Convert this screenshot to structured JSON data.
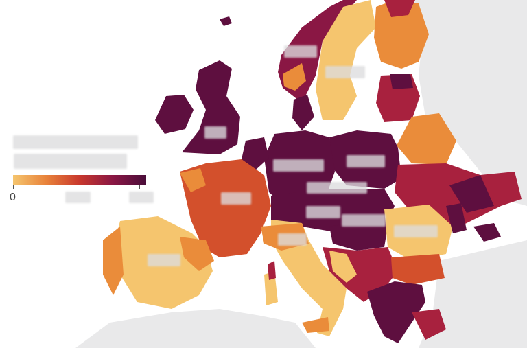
{
  "legend": {
    "zero_label": "0",
    "gradient_colors": [
      "#f5c56e",
      "#e8823a",
      "#c8382d",
      "#8a1744",
      "#4a0d3a"
    ]
  },
  "colors": {
    "sea": "#ffffff",
    "non_eu_land": "#e9e9ea",
    "scale_1": "#f5c56e",
    "scale_2": "#ea8c3a",
    "scale_3": "#d3502c",
    "scale_4": "#a8213e",
    "scale_5": "#5e0f3f"
  },
  "map_regions": [
    {
      "name": "iceland",
      "level": 5
    },
    {
      "name": "ireland",
      "level": 5
    },
    {
      "name": "united-kingdom",
      "level": 5
    },
    {
      "name": "norway",
      "level": 5
    },
    {
      "name": "sweden",
      "level": 1
    },
    {
      "name": "finland",
      "level": 2
    },
    {
      "name": "baltics",
      "level": 5
    },
    {
      "name": "belarus",
      "level": 2
    },
    {
      "name": "poland",
      "level": 5
    },
    {
      "name": "germany",
      "level": 5
    },
    {
      "name": "france",
      "level": 3
    },
    {
      "name": "spain",
      "level": 1
    },
    {
      "name": "portugal",
      "level": 2
    },
    {
      "name": "italy",
      "level": 2
    },
    {
      "name": "ukraine",
      "level": 4
    },
    {
      "name": "romania",
      "level": 1
    },
    {
      "name": "balkans",
      "level": 4
    },
    {
      "name": "greece",
      "level": 5
    }
  ]
}
